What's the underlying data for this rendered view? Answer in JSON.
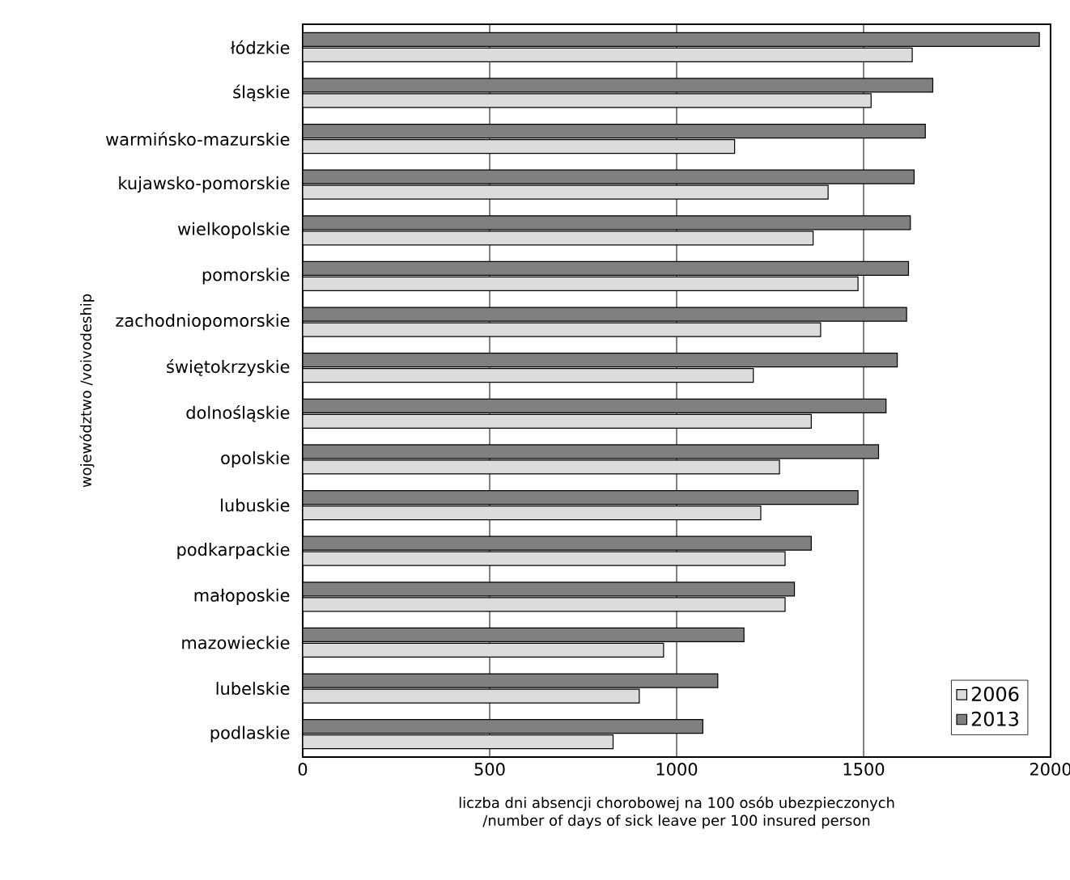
{
  "chart_data": {
    "type": "bar",
    "orientation": "horizontal",
    "xlabel": "liczba dni absencji chorobowej na 100 osób ubezpieczonych\n/number of days of sick leave per 100 insured person",
    "ylabel": "województwo /voivodeship",
    "categories": [
      "łódzkie",
      "śląskie",
      "warmińsko-mazurskie",
      "kujawsko-pomorskie",
      "wielkopolskie",
      "pomorskie",
      "zachodniopomorskie",
      "świętokrzyskie",
      "dolnośląskie",
      "opolskie",
      "lubuskie",
      "podkarpackie",
      "małoposkie",
      "mazowieckie",
      "lubelskie",
      "podlaskie"
    ],
    "series": [
      {
        "name": "2006",
        "color": "#dcdcdc",
        "values": [
          1630,
          1520,
          1155,
          1405,
          1365,
          1485,
          1385,
          1205,
          1360,
          1275,
          1225,
          1290,
          1290,
          965,
          900,
          830
        ]
      },
      {
        "name": "2013",
        "color": "#808080",
        "values": [
          1970,
          1685,
          1665,
          1635,
          1625,
          1620,
          1615,
          1590,
          1560,
          1540,
          1485,
          1360,
          1315,
          1180,
          1110,
          1070
        ]
      }
    ],
    "xlim": [
      0,
      2000
    ],
    "xticks": [
      0,
      500,
      1000,
      1500,
      2000
    ],
    "grid": "x",
    "legend": "bottom right"
  }
}
